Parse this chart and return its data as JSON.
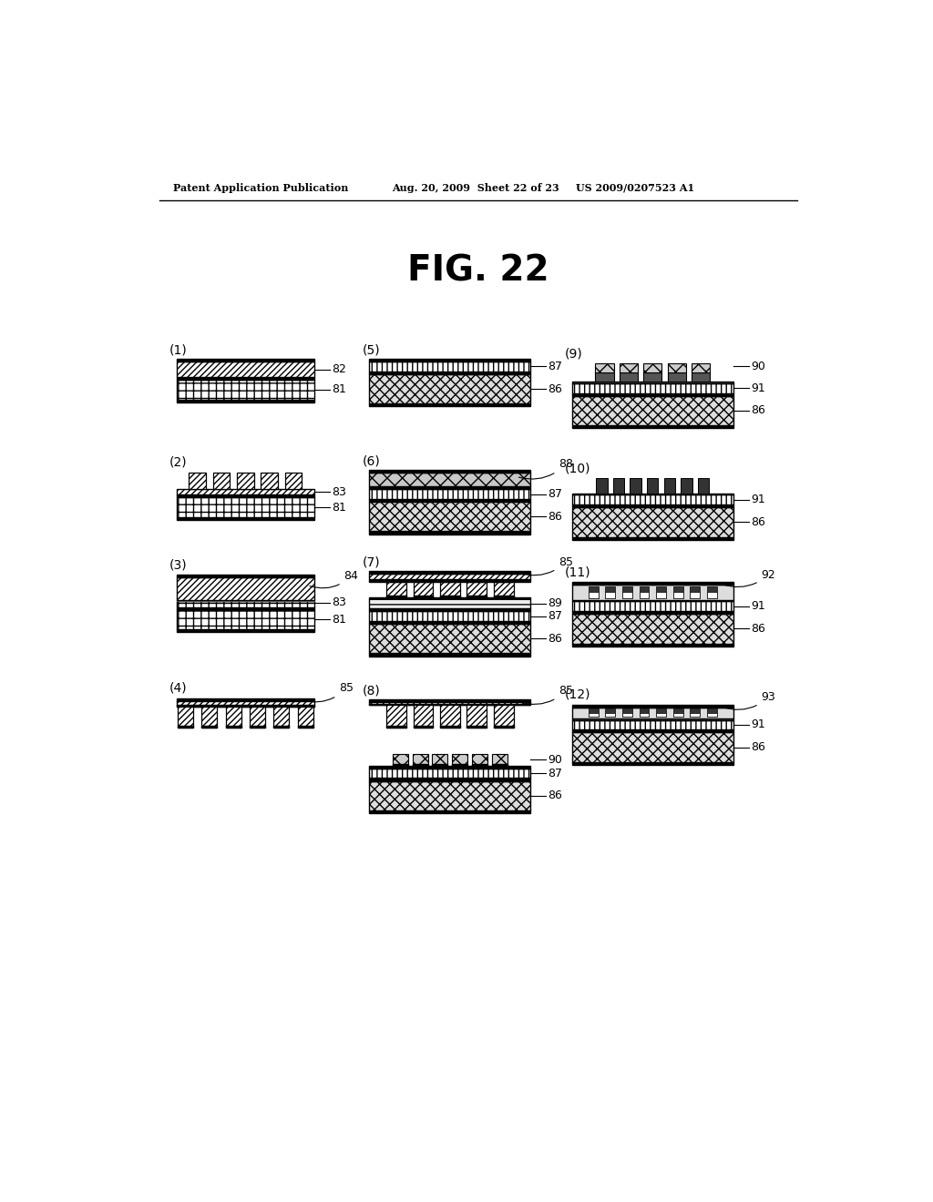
{
  "title": "FIG. 22",
  "header_left": "Patent Application Publication",
  "header_mid": "Aug. 20, 2009  Sheet 22 of 23",
  "header_right": "US 2009/0207523 A1",
  "bg_color": "#ffffff"
}
